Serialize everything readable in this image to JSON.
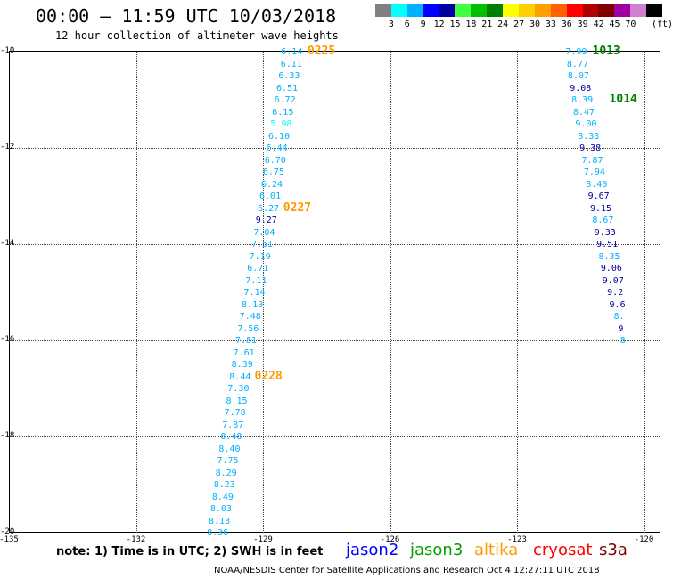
{
  "header": {
    "title": "00:00 – 11:59 UTC 10/03/2018",
    "subtitle": "12 hour collection of altimeter wave heights"
  },
  "color_scale": {
    "colors": [
      "#808080",
      "#00ffff",
      "#00b0ff",
      "#0000ff",
      "#0000a0",
      "#40ff40",
      "#00c000",
      "#008000",
      "#ffff00",
      "#ffd000",
      "#ffa000",
      "#ff6000",
      "#ff0000",
      "#b00000",
      "#800000",
      "#a000a0",
      "#d080d0",
      "#000000"
    ],
    "labels": [
      "3",
      "6",
      "9",
      "12",
      "15",
      "18",
      "21",
      "24",
      "27",
      "30",
      "33",
      "36",
      "39",
      "42",
      "45",
      "70"
    ],
    "unit": "(ft)"
  },
  "axes": {
    "x_ticks": [
      "-135",
      "-132",
      "-129",
      "-126",
      "-123",
      "-120"
    ],
    "y_ticks": [
      "-10",
      "-12",
      "-14",
      "-16",
      "-18",
      "-20"
    ]
  },
  "chart_data": {
    "type": "scatter",
    "xlim": [
      -135,
      -120
    ],
    "ylim": [
      -20,
      -10
    ],
    "grid": true,
    "tracks": [
      {
        "name": "track-left",
        "points": [
          {
            "lon": -128.32,
            "lat": -10.0,
            "v": "6.14",
            "c": "#00b0ff"
          },
          {
            "lon": -128.33,
            "lat": -10.25,
            "v": "6.11",
            "c": "#00b0ff"
          },
          {
            "lon": -128.38,
            "lat": -10.5,
            "v": "6.33",
            "c": "#00b0ff"
          },
          {
            "lon": -128.43,
            "lat": -10.75,
            "v": "6.51",
            "c": "#00b0ff"
          },
          {
            "lon": -128.48,
            "lat": -11.0,
            "v": "6.72",
            "c": "#00b0ff"
          },
          {
            "lon": -128.53,
            "lat": -11.25,
            "v": "6.15",
            "c": "#00b0ff"
          },
          {
            "lon": -128.57,
            "lat": -11.5,
            "v": "5.98",
            "c": "#00ffff"
          },
          {
            "lon": -128.62,
            "lat": -11.75,
            "v": "6.10",
            "c": "#00b0ff"
          },
          {
            "lon": -128.67,
            "lat": -12.0,
            "v": "6.44",
            "c": "#00b0ff"
          },
          {
            "lon": -128.71,
            "lat": -12.25,
            "v": "6.70",
            "c": "#00b0ff"
          },
          {
            "lon": -128.75,
            "lat": -12.5,
            "v": "6.75",
            "c": "#00b0ff"
          },
          {
            "lon": -128.79,
            "lat": -12.75,
            "v": "6.24",
            "c": "#00b0ff"
          },
          {
            "lon": -128.83,
            "lat": -13.0,
            "v": "6.01",
            "c": "#00b0ff"
          },
          {
            "lon": -128.87,
            "lat": -13.25,
            "v": "6.27",
            "c": "#00b0ff"
          },
          {
            "lon": -128.92,
            "lat": -13.5,
            "v": "9.27",
            "c": "#0000a0"
          },
          {
            "lon": -128.97,
            "lat": -13.75,
            "v": "7.04",
            "c": "#00b0ff"
          },
          {
            "lon": -129.02,
            "lat": -14.0,
            "v": "7.51",
            "c": "#00b0ff"
          },
          {
            "lon": -129.07,
            "lat": -14.25,
            "v": "7.19",
            "c": "#00b0ff"
          },
          {
            "lon": -129.12,
            "lat": -14.5,
            "v": "6.71",
            "c": "#00b0ff"
          },
          {
            "lon": -129.16,
            "lat": -14.75,
            "v": "7.11",
            "c": "#00b0ff"
          },
          {
            "lon": -129.2,
            "lat": -15.0,
            "v": "7.14",
            "c": "#00b0ff"
          },
          {
            "lon": -129.25,
            "lat": -15.25,
            "v": "8.10",
            "c": "#00b0ff"
          },
          {
            "lon": -129.3,
            "lat": -15.5,
            "v": "7.48",
            "c": "#00b0ff"
          },
          {
            "lon": -129.35,
            "lat": -15.75,
            "v": "7.56",
            "c": "#00b0ff"
          },
          {
            "lon": -129.4,
            "lat": -16.0,
            "v": "7.81",
            "c": "#00b0ff"
          },
          {
            "lon": -129.45,
            "lat": -16.25,
            "v": "7.61",
            "c": "#00b0ff"
          },
          {
            "lon": -129.49,
            "lat": -16.5,
            "v": "8.39",
            "c": "#00b0ff"
          },
          {
            "lon": -129.54,
            "lat": -16.75,
            "v": "8.44",
            "c": "#00b0ff"
          },
          {
            "lon": -129.58,
            "lat": -17.0,
            "v": "7.30",
            "c": "#00b0ff"
          },
          {
            "lon": -129.62,
            "lat": -17.25,
            "v": "8.15",
            "c": "#00b0ff"
          },
          {
            "lon": -129.66,
            "lat": -17.5,
            "v": "7.78",
            "c": "#00b0ff"
          },
          {
            "lon": -129.71,
            "lat": -17.75,
            "v": "7.87",
            "c": "#00b0ff"
          },
          {
            "lon": -129.75,
            "lat": -18.0,
            "v": "8.48",
            "c": "#00b0ff"
          },
          {
            "lon": -129.79,
            "lat": -18.25,
            "v": "8.40",
            "c": "#00b0ff"
          },
          {
            "lon": -129.83,
            "lat": -18.5,
            "v": "7.75",
            "c": "#00b0ff"
          },
          {
            "lon": -129.87,
            "lat": -18.75,
            "v": "8.29",
            "c": "#00b0ff"
          },
          {
            "lon": -129.91,
            "lat": -19.0,
            "v": "8.23",
            "c": "#00b0ff"
          },
          {
            "lon": -129.95,
            "lat": -19.25,
            "v": "8.49",
            "c": "#00b0ff"
          },
          {
            "lon": -129.99,
            "lat": -19.5,
            "v": "8.03",
            "c": "#00b0ff"
          },
          {
            "lon": -130.03,
            "lat": -19.75,
            "v": "8.13",
            "c": "#00b0ff"
          },
          {
            "lon": -130.07,
            "lat": -20.0,
            "v": "8.36",
            "c": "#00b0ff"
          }
        ]
      },
      {
        "name": "track-right",
        "points": [
          {
            "lon": -121.6,
            "lat": -10.0,
            "v": "7.99",
            "c": "#00b0ff"
          },
          {
            "lon": -121.57,
            "lat": -10.25,
            "v": "8.77",
            "c": "#00b0ff"
          },
          {
            "lon": -121.55,
            "lat": -10.5,
            "v": "8.07",
            "c": "#00b0ff"
          },
          {
            "lon": -121.5,
            "lat": -10.75,
            "v": "9.08",
            "c": "#0000a0"
          },
          {
            "lon": -121.46,
            "lat": -11.0,
            "v": "8.39",
            "c": "#00b0ff"
          },
          {
            "lon": -121.42,
            "lat": -11.25,
            "v": "8.47",
            "c": "#00b0ff"
          },
          {
            "lon": -121.37,
            "lat": -11.5,
            "v": "9.00",
            "c": "#00b0ff"
          },
          {
            "lon": -121.31,
            "lat": -11.75,
            "v": "8.33",
            "c": "#00b0ff"
          },
          {
            "lon": -121.27,
            "lat": -12.0,
            "v": "9.38",
            "c": "#0000a0"
          },
          {
            "lon": -121.22,
            "lat": -12.25,
            "v": "7.87",
            "c": "#00b0ff"
          },
          {
            "lon": -121.17,
            "lat": -12.5,
            "v": "7.94",
            "c": "#00b0ff"
          },
          {
            "lon": -121.12,
            "lat": -12.75,
            "v": "8.40",
            "c": "#00b0ff"
          },
          {
            "lon": -121.07,
            "lat": -13.0,
            "v": "9.67",
            "c": "#0000a0"
          },
          {
            "lon": -121.02,
            "lat": -13.25,
            "v": "9.15",
            "c": "#0000a0"
          },
          {
            "lon": -120.97,
            "lat": -13.5,
            "v": "8.67",
            "c": "#00b0ff"
          },
          {
            "lon": -120.92,
            "lat": -13.75,
            "v": "9.33",
            "c": "#0000a0"
          },
          {
            "lon": -120.87,
            "lat": -14.0,
            "v": "9.51",
            "c": "#0000a0"
          },
          {
            "lon": -120.82,
            "lat": -14.25,
            "v": "8.35",
            "c": "#00b0ff"
          },
          {
            "lon": -120.77,
            "lat": -14.5,
            "v": "9.06",
            "c": "#0000a0"
          },
          {
            "lon": -120.73,
            "lat": -14.75,
            "v": "9.07",
            "c": "#0000a0"
          },
          {
            "lon": -120.68,
            "lat": -15.0,
            "v": "9.2",
            "c": "#0000a0"
          },
          {
            "lon": -120.63,
            "lat": -15.25,
            "v": "9.6",
            "c": "#0000a0"
          },
          {
            "lon": -120.59,
            "lat": -15.5,
            "v": "8.",
            "c": "#00b0ff"
          },
          {
            "lon": -120.55,
            "lat": -15.75,
            "v": "9",
            "c": "#0000a0"
          },
          {
            "lon": -120.5,
            "lat": -16.0,
            "v": "8",
            "c": "#00b0ff"
          }
        ]
      }
    ],
    "time_labels": [
      {
        "lon": -127.95,
        "lat": -10.0,
        "text": "0225",
        "c": "#ff9900"
      },
      {
        "lon": -128.52,
        "lat": -13.25,
        "text": "0227",
        "c": "#ff9900"
      },
      {
        "lon": -129.2,
        "lat": -16.75,
        "text": "0228",
        "c": "#ff9900"
      },
      {
        "lon": -121.22,
        "lat": -10.0,
        "text": "1013",
        "c": "#008000"
      },
      {
        "lon": -120.82,
        "lat": -11.0,
        "text": "1014",
        "c": "#008000"
      }
    ]
  },
  "footer": {
    "note": "note: 1) Time is in UTC; 2) SWH is in feet",
    "legend": [
      {
        "label": "jason2",
        "color": "#0000ff"
      },
      {
        "label": "jason3",
        "color": "#00a000"
      },
      {
        "label": "altika",
        "color": "#ff9900"
      },
      {
        "label": "cryosat",
        "color": "#ff0000"
      },
      {
        "label": "s3a",
        "color": "#800000"
      }
    ],
    "credit": "NOAA/NESDIS Center for Satellite Applications and Research    Oct  4 12:27:11 UTC 2018"
  }
}
